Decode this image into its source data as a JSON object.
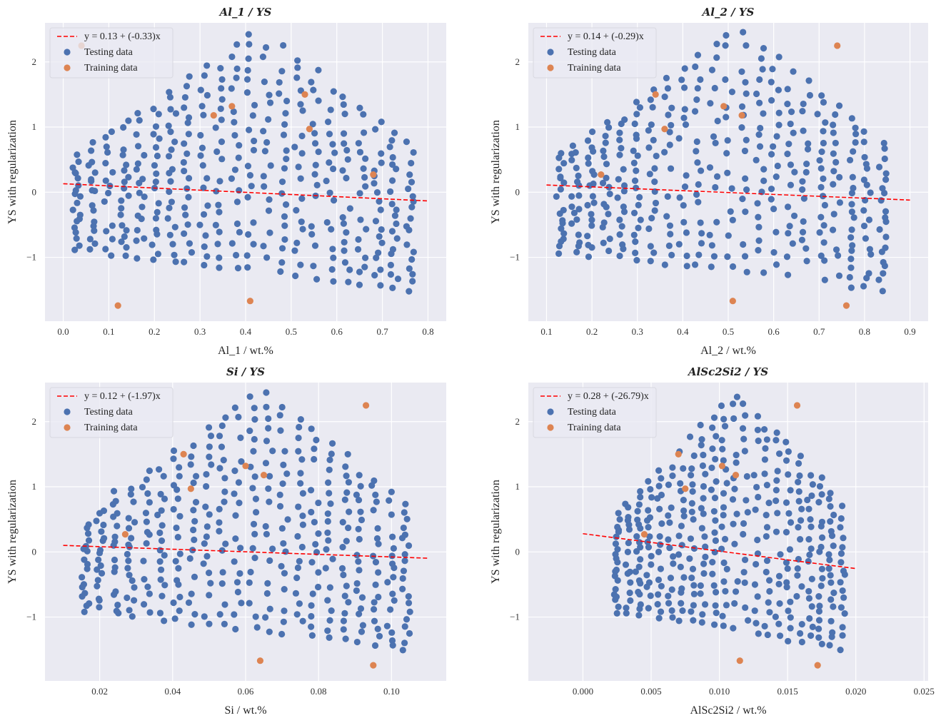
{
  "colors": {
    "background": "#eaeaf2",
    "grid": "#ffffff",
    "testing": "#4c72b0",
    "training": "#dd8452",
    "fit": "#ff0000"
  },
  "chart_data": [
    {
      "type": "scatter",
      "title": "Al_1 / YS",
      "xlabel": "Al_1 / wt.%",
      "ylabel": "YS with regularization",
      "xlim": [
        -0.04,
        0.84
      ],
      "ylim": [
        -1.98,
        2.6
      ],
      "xticks": [
        0.0,
        0.1,
        0.2,
        0.3,
        0.4,
        0.5,
        0.6,
        0.7,
        0.8
      ],
      "xtick_labels": [
        "0.0",
        "0.1",
        "0.2",
        "0.3",
        "0.4",
        "0.5",
        "0.6",
        "0.7",
        "0.8"
      ],
      "yticks": [
        -1,
        0,
        1,
        2
      ],
      "ytick_labels": [
        "−1",
        "0",
        "1",
        "2"
      ],
      "x_range": [
        0.03,
        0.76
      ],
      "fit": {
        "label": "y = 0.13 + (-0.33)x",
        "intercept": 0.13,
        "slope": -0.33,
        "x_range": [
          0.0,
          0.8
        ]
      },
      "legend": {
        "position": "top-left",
        "testing_label": "Testing data",
        "training_label": "Training data"
      },
      "training_points": [
        [
          0.04,
          2.25
        ],
        [
          0.12,
          -1.74
        ],
        [
          0.33,
          1.18
        ],
        [
          0.37,
          1.32
        ],
        [
          0.41,
          -1.67
        ],
        [
          0.53,
          1.5
        ],
        [
          0.54,
          0.97
        ],
        [
          0.68,
          0.27
        ]
      ]
    },
    {
      "type": "scatter",
      "title": "Al_2 / YS",
      "xlabel": "Al_2 / wt.%",
      "ylabel": "YS with regularization",
      "xlim": [
        0.06,
        0.94
      ],
      "ylim": [
        -1.98,
        2.6
      ],
      "xticks": [
        0.1,
        0.2,
        0.3,
        0.4,
        0.5,
        0.6,
        0.7,
        0.8,
        0.9
      ],
      "xtick_labels": [
        "0.1",
        "0.2",
        "0.3",
        "0.4",
        "0.5",
        "0.6",
        "0.7",
        "0.8",
        "0.9"
      ],
      "yticks": [
        -1,
        0,
        1,
        2
      ],
      "ytick_labels": [
        "−1",
        "0",
        "1",
        "2"
      ],
      "x_range": [
        0.13,
        0.84
      ],
      "fit": {
        "label": "y = 0.14 + (-0.29)x",
        "intercept": 0.14,
        "slope": -0.29,
        "x_range": [
          0.1,
          0.9
        ]
      },
      "legend": {
        "position": "top-left",
        "testing_label": "Testing data",
        "training_label": "Training data"
      },
      "training_points": [
        [
          0.22,
          0.27
        ],
        [
          0.34,
          1.5
        ],
        [
          0.36,
          0.97
        ],
        [
          0.49,
          1.32
        ],
        [
          0.51,
          -1.67
        ],
        [
          0.53,
          1.18
        ],
        [
          0.74,
          2.25
        ],
        [
          0.76,
          -1.74
        ]
      ]
    },
    {
      "type": "scatter",
      "title": "Si / YS",
      "xlabel": "Si / wt.%",
      "ylabel": "YS with regularization",
      "xlim": [
        0.005,
        0.115
      ],
      "ylim": [
        -1.98,
        2.6
      ],
      "xticks": [
        0.02,
        0.04,
        0.06,
        0.08,
        0.1
      ],
      "xtick_labels": [
        "0.02",
        "0.04",
        "0.06",
        "0.08",
        "0.10"
      ],
      "yticks": [
        -1,
        0,
        1,
        2
      ],
      "ytick_labels": [
        "−1",
        "0",
        "1",
        "2"
      ],
      "x_range": [
        0.016,
        0.104
      ],
      "fit": {
        "label": "y = 0.12 + (-1.97)x",
        "intercept": 0.12,
        "slope": -1.97,
        "x_range": [
          0.01,
          0.11
        ]
      },
      "legend": {
        "position": "top-left",
        "testing_label": "Testing data",
        "training_label": "Training data"
      },
      "training_points": [
        [
          0.027,
          0.27
        ],
        [
          0.043,
          1.5
        ],
        [
          0.045,
          0.97
        ],
        [
          0.06,
          1.32
        ],
        [
          0.064,
          -1.67
        ],
        [
          0.065,
          1.18
        ],
        [
          0.093,
          2.25
        ],
        [
          0.095,
          -1.74
        ]
      ]
    },
    {
      "type": "scatter",
      "title": "AlSc2Si2 / YS",
      "xlabel": "AlSc2Si2 / wt.%",
      "ylabel": "YS with regularization",
      "xlim": [
        -0.004,
        0.0253
      ],
      "ylim": [
        -1.98,
        2.6
      ],
      "xticks": [
        0.0,
        0.005,
        0.01,
        0.015,
        0.02,
        0.025
      ],
      "xtick_labels": [
        "0.000",
        "0.005",
        "0.010",
        "0.015",
        "0.020",
        "0.025"
      ],
      "yticks": [
        -1,
        0,
        1,
        2
      ],
      "ytick_labels": [
        "−1",
        "0",
        "1",
        "2"
      ],
      "x_range": [
        0.0025,
        0.019
      ],
      "fit": {
        "label": "y = 0.28 + (-26.79)x",
        "intercept": 0.28,
        "slope": -26.79,
        "x_range": [
          0.0,
          0.02
        ]
      },
      "legend": {
        "position": "top-left",
        "testing_label": "Testing data",
        "training_label": "Training data"
      },
      "training_points": [
        [
          0.0045,
          0.27
        ],
        [
          0.007,
          1.5
        ],
        [
          0.0075,
          0.97
        ],
        [
          0.0102,
          1.32
        ],
        [
          0.0115,
          -1.67
        ],
        [
          0.0112,
          1.18
        ],
        [
          0.0157,
          2.25
        ],
        [
          0.0172,
          -1.74
        ]
      ]
    }
  ]
}
